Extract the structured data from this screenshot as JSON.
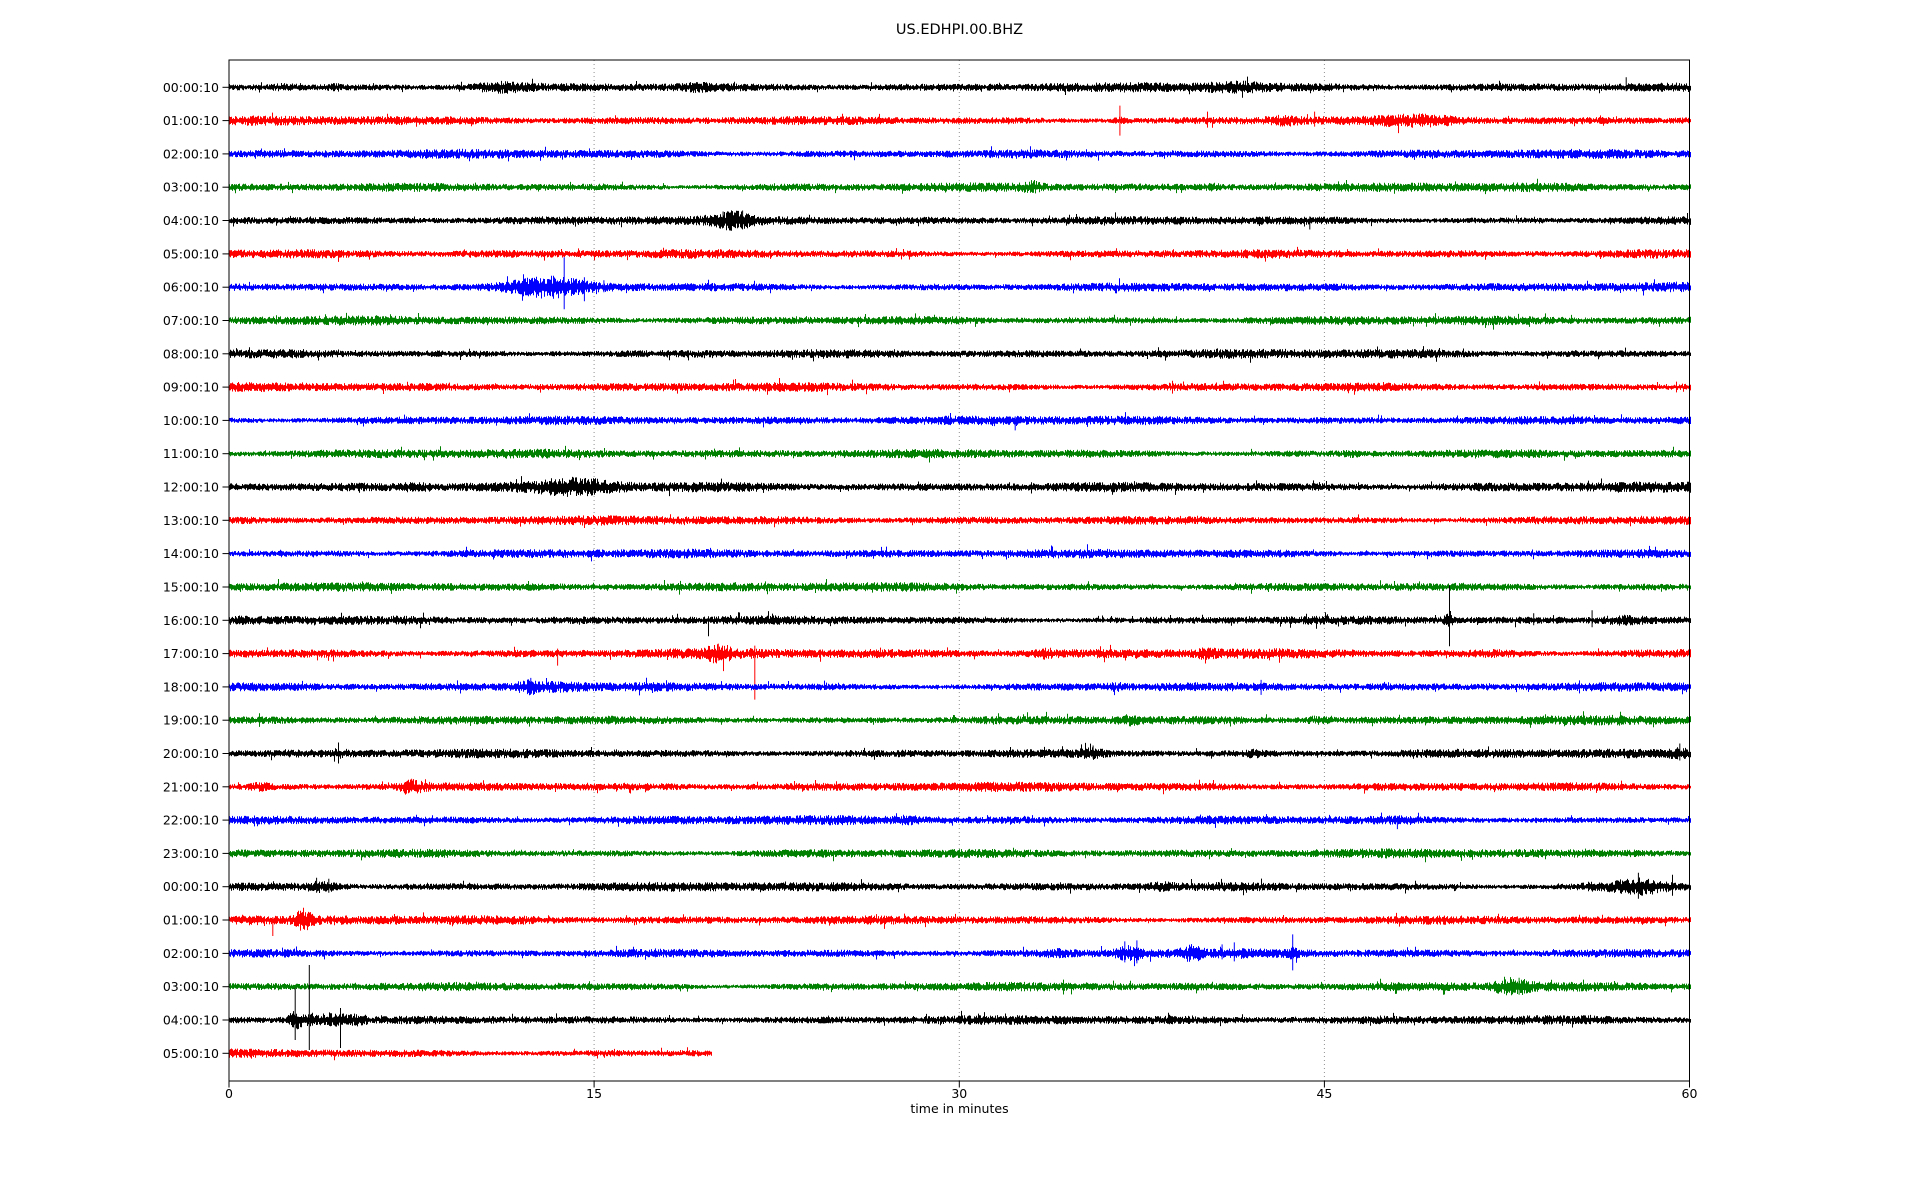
{
  "title": "US.EDHPI.00.BHZ",
  "chart_data": {
    "type": "line",
    "subtype": "helicorder_seismogram",
    "title": "US.EDHPI.00.BHZ",
    "xlabel": "time in minutes",
    "xlim": [
      0,
      60
    ],
    "x_ticks": [
      0,
      15,
      30,
      45,
      60
    ],
    "x_gridlines": [
      15,
      30,
      45
    ],
    "grid_style": "dotted",
    "grid_color": "#909090",
    "minutes_per_row": 60,
    "trace_colors_cycle": [
      "#000000",
      "#ff0000",
      "#0000ff",
      "#008000"
    ],
    "rows": [
      {
        "label": "00:00:10",
        "color": "#000000",
        "end_min": 60,
        "base": 1,
        "events": [
          {
            "type": "burst",
            "t": 2.3,
            "w": 0.4,
            "amp": 1.6
          },
          {
            "type": "burst",
            "t": 4.4,
            "w": 0.3,
            "amp": 1.4
          },
          {
            "type": "burst",
            "t": 11.0,
            "w": 0.8,
            "amp": 1.9
          },
          {
            "type": "burst",
            "t": 19.2,
            "w": 0.4,
            "amp": 1.4
          },
          {
            "type": "burst",
            "t": 41.3,
            "w": 0.8,
            "amp": 1.7
          },
          {
            "type": "spike",
            "t": 57.4,
            "up": 10,
            "dn": 4
          }
        ]
      },
      {
        "label": "01:00:10",
        "color": "#ff0000",
        "end_min": 60,
        "base": 1,
        "events": [
          {
            "type": "burst",
            "t": 36.6,
            "w": 0.3,
            "amp": 1.7
          },
          {
            "type": "spike",
            "t": 36.6,
            "up": 15,
            "dn": 15
          },
          {
            "type": "spike",
            "t": 40.2,
            "up": 9,
            "dn": 7
          },
          {
            "type": "burst",
            "t": 43.3,
            "w": 0.5,
            "amp": 1.7
          },
          {
            "type": "spike",
            "t": 44.6,
            "up": 9,
            "dn": 6
          },
          {
            "type": "burst",
            "t": 49.0,
            "w": 1.2,
            "amp": 1.6
          }
        ]
      },
      {
        "label": "02:00:10",
        "color": "#0000ff",
        "end_min": 60,
        "base": 1,
        "events": []
      },
      {
        "label": "03:00:10",
        "color": "#008000",
        "end_min": 60,
        "base": 1,
        "events": [
          {
            "type": "burst",
            "t": 33.0,
            "w": 0.25,
            "amp": 1.8
          },
          {
            "type": "burst",
            "t": 40.4,
            "w": 0.2,
            "amp": 1.5
          }
        ]
      },
      {
        "label": "04:00:10",
        "color": "#000000",
        "end_min": 60,
        "base": 1,
        "events": [
          {
            "type": "burst",
            "t": 20.7,
            "w": 0.55,
            "amp": 2.0
          },
          {
            "type": "spike",
            "t": 20.3,
            "up": 9,
            "dn": 5
          },
          {
            "type": "spike",
            "t": 21.1,
            "up": 10,
            "dn": 6
          },
          {
            "type": "spike",
            "t": 44.4,
            "up": 4,
            "dn": 9
          }
        ]
      },
      {
        "label": "05:00:10",
        "color": "#ff0000",
        "end_min": 60,
        "base": 1,
        "events": []
      },
      {
        "label": "06:00:10",
        "color": "#0000ff",
        "end_min": 60,
        "base": 1,
        "events": [
          {
            "type": "burst",
            "t": 13.0,
            "w": 1.1,
            "amp": 2.6
          },
          {
            "type": "spike",
            "t": 12.1,
            "up": 13,
            "dn": 9
          },
          {
            "type": "spike",
            "t": 13.77,
            "up": 30,
            "dn": 22
          },
          {
            "type": "spike",
            "t": 14.6,
            "up": 10,
            "dn": 14
          },
          {
            "type": "spike",
            "t": 15.4,
            "up": 7,
            "dn": 5
          }
        ]
      },
      {
        "label": "07:00:10",
        "color": "#008000",
        "end_min": 60,
        "base": 1,
        "events": []
      },
      {
        "label": "08:00:10",
        "color": "#000000",
        "end_min": 60,
        "base": 1,
        "events": [
          {
            "type": "burst",
            "t": 13.6,
            "w": 0.3,
            "amp": 1.3
          }
        ]
      },
      {
        "label": "09:00:10",
        "color": "#ff0000",
        "end_min": 60,
        "base": 1,
        "events": []
      },
      {
        "label": "10:00:10",
        "color": "#0000ff",
        "end_min": 60,
        "base": 1,
        "events": [
          {
            "type": "spike",
            "t": 32.3,
            "up": 4,
            "dn": 10
          }
        ]
      },
      {
        "label": "11:00:10",
        "color": "#008000",
        "end_min": 60,
        "base": 1,
        "events": [
          {
            "type": "burst",
            "t": 46.2,
            "w": 0.3,
            "amp": 1.4
          }
        ]
      },
      {
        "label": "12:00:10",
        "color": "#000000",
        "end_min": 60,
        "base": 1.15,
        "events": [
          {
            "type": "burst",
            "t": 7.6,
            "w": 0.4,
            "amp": 1.5
          },
          {
            "type": "burst",
            "t": 14.3,
            "w": 1.0,
            "amp": 1.9
          },
          {
            "type": "spike",
            "t": 15.0,
            "up": 8,
            "dn": 6
          }
        ]
      },
      {
        "label": "13:00:10",
        "color": "#ff0000",
        "end_min": 60,
        "base": 1,
        "events": []
      },
      {
        "label": "14:00:10",
        "color": "#0000ff",
        "end_min": 60,
        "base": 1,
        "events": []
      },
      {
        "label": "15:00:10",
        "color": "#008000",
        "end_min": 60,
        "base": 1,
        "events": []
      },
      {
        "label": "16:00:10",
        "color": "#000000",
        "end_min": 60,
        "base": 1,
        "events": [
          {
            "type": "spike",
            "t": 19.7,
            "up": 4,
            "dn": 16
          },
          {
            "type": "spike",
            "t": 50.14,
            "up": 35,
            "dn": 26
          },
          {
            "type": "burst",
            "t": 50.1,
            "w": 0.15,
            "amp": 2.0
          },
          {
            "type": "spike",
            "t": 53.6,
            "up": 7,
            "dn": 5
          },
          {
            "type": "spike",
            "t": 56.0,
            "up": 10,
            "dn": 7
          },
          {
            "type": "burst",
            "t": 57.3,
            "w": 0.7,
            "amp": 1.9
          }
        ]
      },
      {
        "label": "17:00:10",
        "color": "#ff0000",
        "end_min": 60,
        "base": 1.1,
        "events": [
          {
            "type": "spike",
            "t": 13.5,
            "up": 5,
            "dn": 12
          },
          {
            "type": "burst",
            "t": 20.1,
            "w": 0.35,
            "amp": 1.9
          },
          {
            "type": "spike",
            "t": 20.1,
            "up": 10,
            "dn": 7
          },
          {
            "type": "spike",
            "t": 21.6,
            "up": 8,
            "dn": 46
          },
          {
            "type": "burst",
            "t": 33.5,
            "w": 0.3,
            "amp": 1.6
          },
          {
            "type": "burst",
            "t": 40.1,
            "w": 0.3,
            "amp": 1.5
          },
          {
            "type": "burst",
            "t": 52.3,
            "w": 0.8,
            "amp": 1.4
          }
        ]
      },
      {
        "label": "18:00:10",
        "color": "#0000ff",
        "end_min": 60,
        "base": 1,
        "events": [
          {
            "type": "burst",
            "t": 12.4,
            "w": 0.4,
            "amp": 2.2
          },
          {
            "type": "spike",
            "t": 12.4,
            "up": 9,
            "dn": 6
          },
          {
            "type": "burst",
            "t": 13.5,
            "w": 0.8,
            "amp": 1.6
          },
          {
            "type": "burst",
            "t": 36.5,
            "w": 0.3,
            "amp": 1.4
          },
          {
            "type": "spike",
            "t": 42.4,
            "up": 7,
            "dn": 8
          }
        ]
      },
      {
        "label": "19:00:10",
        "color": "#008000",
        "end_min": 60,
        "base": 1,
        "events": [
          {
            "type": "burst",
            "t": 37.0,
            "w": 0.3,
            "amp": 1.6
          },
          {
            "type": "burst",
            "t": 44.7,
            "w": 0.35,
            "amp": 1.7
          }
        ]
      },
      {
        "label": "20:00:10",
        "color": "#000000",
        "end_min": 60,
        "base": 1,
        "events": [
          {
            "type": "burst",
            "t": 4.5,
            "w": 0.15,
            "amp": 1.5
          },
          {
            "type": "spike",
            "t": 4.5,
            "up": 11,
            "dn": 10
          },
          {
            "type": "burst",
            "t": 35.5,
            "w": 0.3,
            "amp": 1.6
          },
          {
            "type": "spike",
            "t": 35.5,
            "up": 8,
            "dn": 5
          },
          {
            "type": "burst",
            "t": 42.1,
            "w": 0.25,
            "amp": 1.5
          },
          {
            "type": "burst",
            "t": 59.6,
            "w": 0.3,
            "amp": 1.6
          },
          {
            "type": "spike",
            "t": 59.6,
            "up": 10,
            "dn": 7
          }
        ]
      },
      {
        "label": "21:00:10",
        "color": "#ff0000",
        "end_min": 60,
        "base": 1,
        "events": [
          {
            "type": "burst",
            "t": 1.3,
            "w": 0.3,
            "amp": 1.7
          },
          {
            "type": "burst",
            "t": 7.5,
            "w": 0.35,
            "amp": 1.9
          },
          {
            "type": "spike",
            "t": 7.5,
            "up": 8,
            "dn": 4
          }
        ]
      },
      {
        "label": "22:00:10",
        "color": "#0000ff",
        "end_min": 60,
        "base": 1,
        "events": [
          {
            "type": "burst",
            "t": 27.9,
            "w": 0.3,
            "amp": 1.5
          },
          {
            "type": "burst",
            "t": 48.0,
            "w": 0.2,
            "amp": 1.4
          },
          {
            "type": "spike",
            "t": 48.0,
            "up": 4,
            "dn": 9
          }
        ]
      },
      {
        "label": "23:00:10",
        "color": "#008000",
        "end_min": 60,
        "base": 1,
        "events": [
          {
            "type": "burst",
            "t": 58.0,
            "w": 0.5,
            "amp": 1.4
          }
        ]
      },
      {
        "label": "00:00:10",
        "color": "#000000",
        "end_min": 60,
        "base": 1,
        "events": [
          {
            "type": "burst",
            "t": 3.85,
            "w": 0.4,
            "amp": 1.9
          },
          {
            "type": "spike",
            "t": 3.6,
            "up": 9,
            "dn": 6
          },
          {
            "type": "spike",
            "t": 4.1,
            "up": 8,
            "dn": 6
          },
          {
            "type": "burst",
            "t": 38.3,
            "w": 0.3,
            "amp": 1.4
          },
          {
            "type": "burst",
            "t": 56.0,
            "w": 0.3,
            "amp": 1.5
          },
          {
            "type": "burst",
            "t": 57.9,
            "w": 0.8,
            "amp": 2.6
          },
          {
            "type": "spike",
            "t": 57.9,
            "up": 14,
            "dn": 12
          },
          {
            "type": "spike",
            "t": 59.3,
            "up": 12,
            "dn": 9
          }
        ]
      },
      {
        "label": "01:00:10",
        "color": "#ff0000",
        "end_min": 60,
        "base": 1,
        "events": [
          {
            "type": "burst",
            "t": 0.7,
            "w": 0.5,
            "amp": 1.5
          },
          {
            "type": "spike",
            "t": 1.8,
            "up": 3,
            "dn": 16
          },
          {
            "type": "burst",
            "t": 3.05,
            "w": 0.22,
            "amp": 2.6
          }
        ]
      },
      {
        "label": "02:00:10",
        "color": "#0000ff",
        "end_min": 60,
        "base": 1,
        "events": [
          {
            "type": "burst",
            "t": 34.0,
            "w": 0.2,
            "amp": 1.4
          },
          {
            "type": "burst",
            "t": 37.0,
            "w": 0.35,
            "amp": 2.2
          },
          {
            "type": "spike",
            "t": 36.8,
            "up": 12,
            "dn": 9
          },
          {
            "type": "spike",
            "t": 37.3,
            "up": 13,
            "dn": 10
          },
          {
            "type": "burst",
            "t": 39.5,
            "w": 0.3,
            "amp": 1.9
          },
          {
            "type": "spike",
            "t": 40.8,
            "up": 9,
            "dn": 6
          },
          {
            "type": "spike",
            "t": 41.3,
            "up": 11,
            "dn": 8
          },
          {
            "type": "burst",
            "t": 43.7,
            "w": 0.15,
            "amp": 1.8
          },
          {
            "type": "spike",
            "t": 43.7,
            "up": 19,
            "dn": 17
          }
        ]
      },
      {
        "label": "03:00:10",
        "color": "#008000",
        "end_min": 60,
        "base": 1,
        "events": [
          {
            "type": "burst",
            "t": 52.7,
            "w": 0.5,
            "amp": 2.2
          },
          {
            "type": "spike",
            "t": 52.4,
            "up": 10,
            "dn": 7
          },
          {
            "type": "spike",
            "t": 53.0,
            "up": 9,
            "dn": 8
          }
        ]
      },
      {
        "label": "04:00:10",
        "color": "#000000",
        "end_min": 60,
        "base": 1,
        "events": [
          {
            "type": "burst",
            "t": 2.75,
            "w": 0.25,
            "amp": 3.5
          },
          {
            "type": "spike",
            "t": 2.72,
            "up": 32,
            "dn": 20
          },
          {
            "type": "burst",
            "t": 3.3,
            "w": 0.1,
            "amp": 2.0
          },
          {
            "type": "spike",
            "t": 3.3,
            "up": 55,
            "dn": 30
          },
          {
            "type": "burst",
            "t": 4.2,
            "w": 0.5,
            "amp": 2.8
          },
          {
            "type": "spike",
            "t": 4.58,
            "up": 12,
            "dn": 28
          },
          {
            "type": "burst",
            "t": 5.3,
            "w": 0.3,
            "amp": 1.8
          }
        ]
      },
      {
        "label": "05:00:10",
        "color": "#ff0000",
        "end_min": 19.8,
        "base": 1,
        "events": []
      }
    ]
  }
}
